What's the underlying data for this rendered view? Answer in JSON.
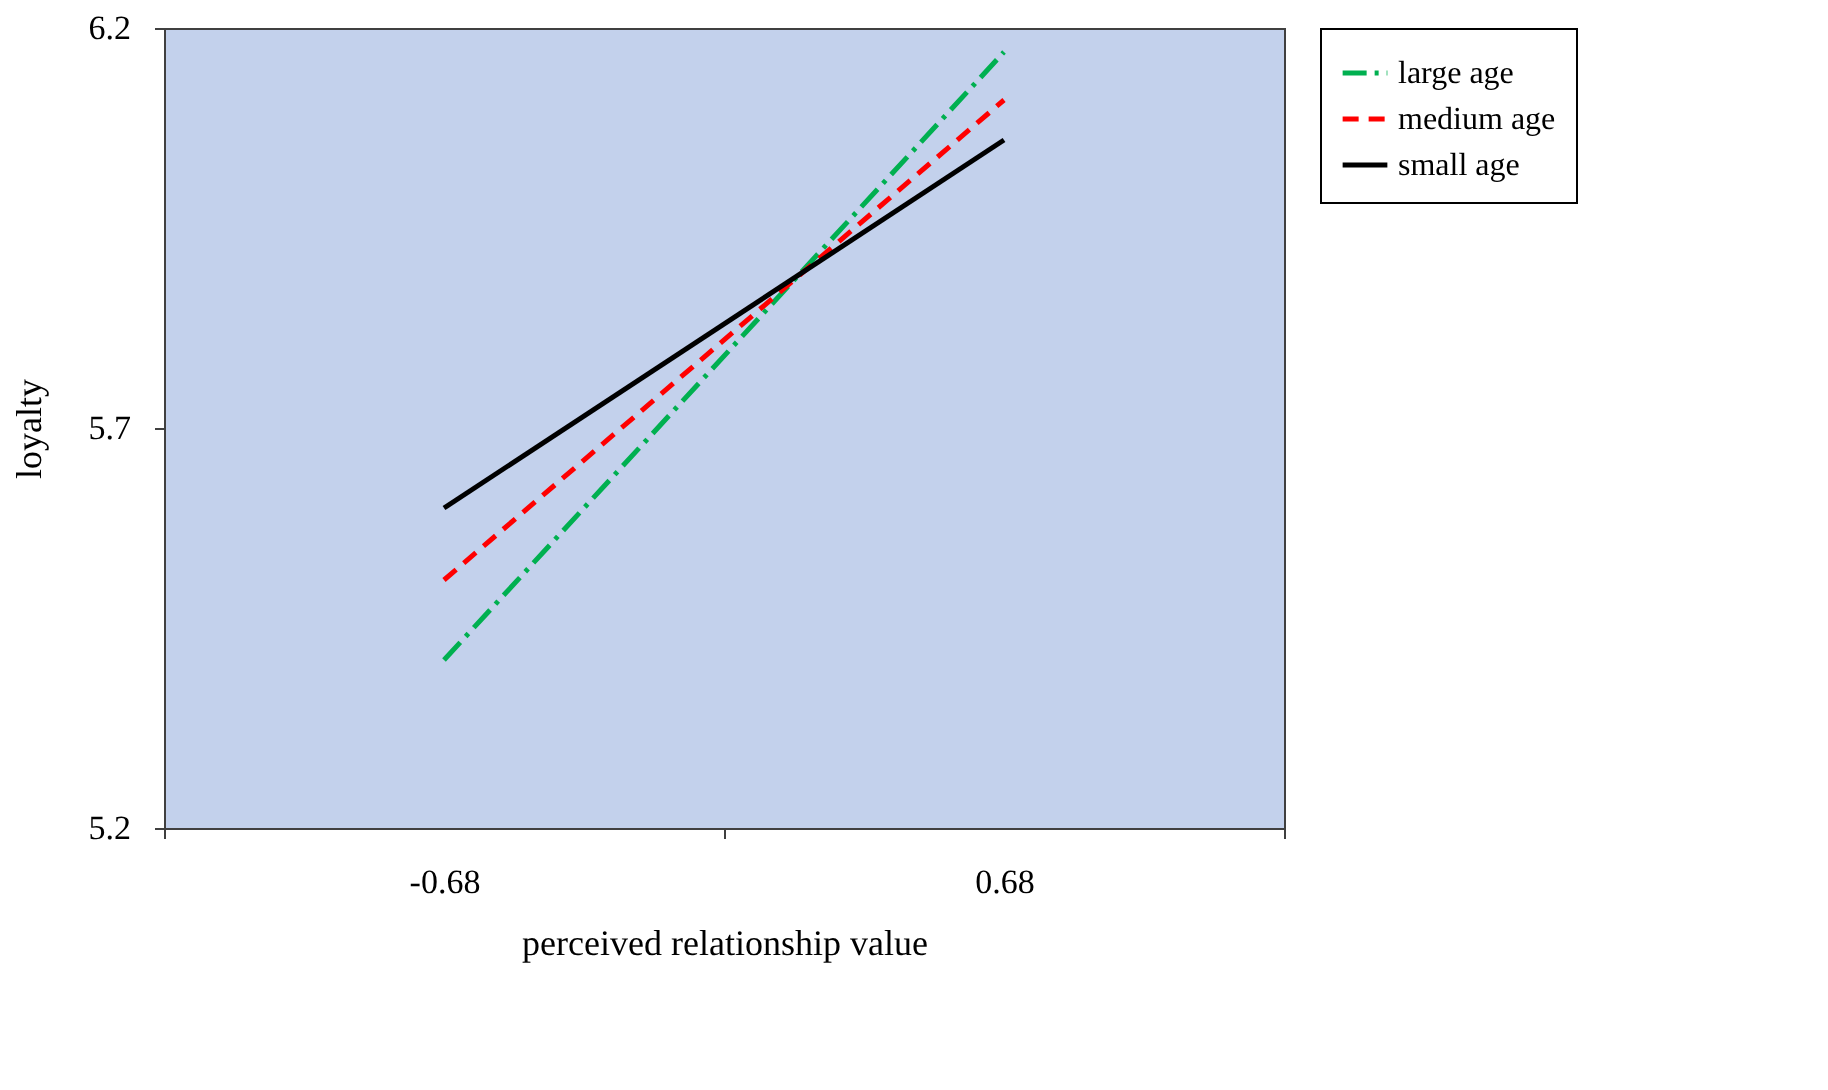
{
  "chart_data": {
    "type": "line",
    "xlabel": "perceived relationship value",
    "ylabel": "loyalty",
    "categories": [
      "-0.68",
      "0.68"
    ],
    "ylim": [
      5.2,
      6.2
    ],
    "yticks": [
      5.2,
      5.7,
      6.2
    ],
    "grid": false,
    "legend": "right",
    "marker": "none",
    "series": [
      {
        "name": "large age",
        "color": "#00b050",
        "line_style": "dashdot",
        "values": [
          5.41,
          6.17
        ]
      },
      {
        "name": "medium age",
        "color": "#ff0000",
        "line_style": "dashed",
        "values": [
          5.51,
          6.11
        ]
      },
      {
        "name": "small age",
        "color": "#000000",
        "line_style": "solid",
        "values": [
          5.6,
          6.06
        ]
      }
    ]
  }
}
